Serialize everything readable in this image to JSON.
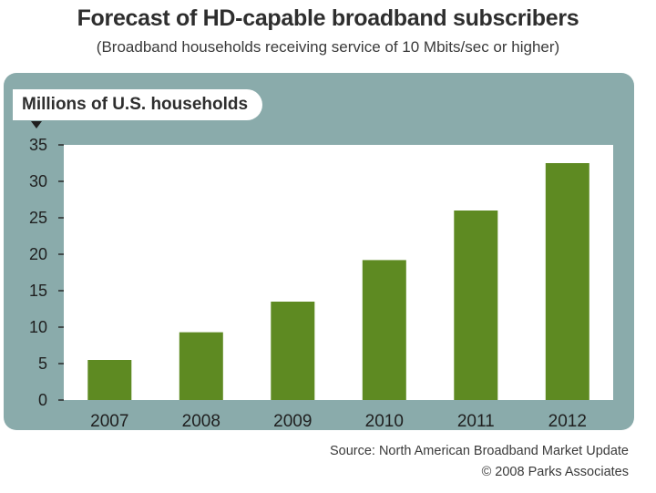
{
  "chart_data": {
    "type": "bar",
    "title": "Forecast of HD-capable broadband subscribers",
    "subtitle": "(Broadband households receiving service of 10 Mbits/sec or higher)",
    "ylabel": "Millions of U.S. households",
    "categories": [
      "2007",
      "2008",
      "2009",
      "2010",
      "2011",
      "2012"
    ],
    "values": [
      5.5,
      9.3,
      13.5,
      19.2,
      26.0,
      32.5
    ],
    "ylim": [
      0,
      35
    ],
    "yticks": [
      "0",
      "5",
      "10",
      "15",
      "20",
      "25",
      "30",
      "35"
    ],
    "grid": false,
    "bar_color": "#5e8a22",
    "panel_color": "#8aabab"
  },
  "source": {
    "line1": "Source: North American Broadband Market Update",
    "line2": "© 2008 Parks Associates"
  }
}
